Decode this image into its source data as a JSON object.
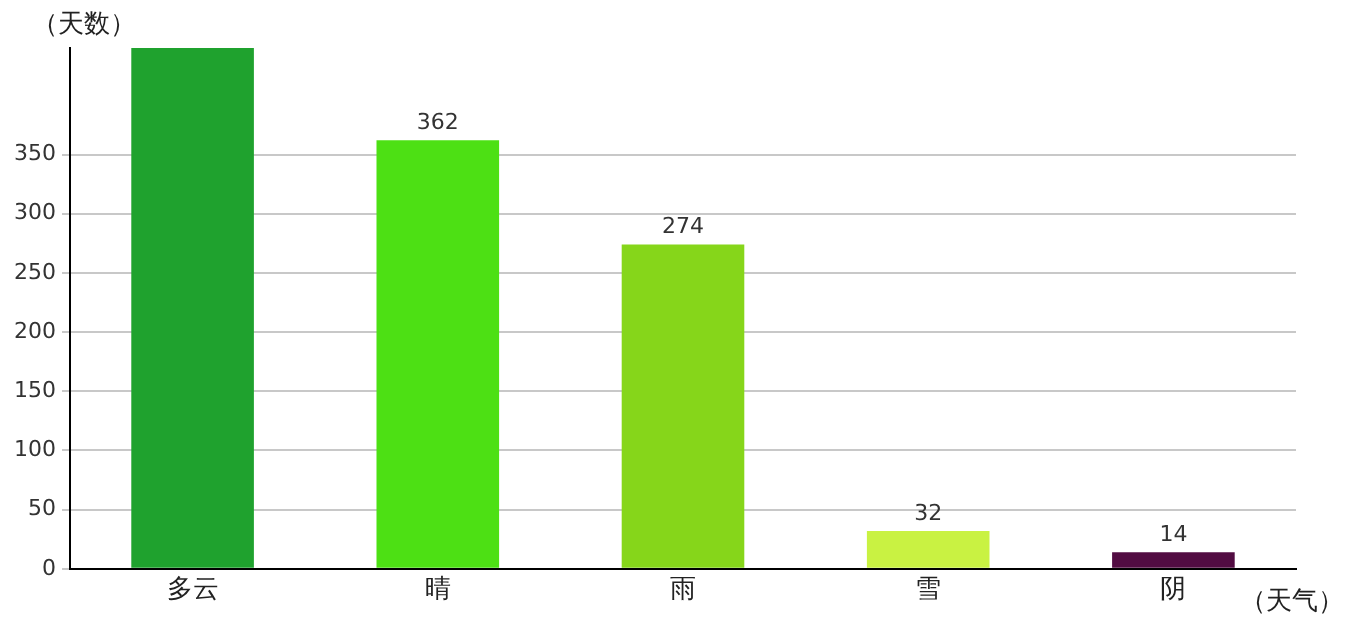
{
  "chart_data": {
    "type": "bar",
    "ylabel": "（天数）",
    "xlabel": "（天气）",
    "categories": [
      "多云",
      "晴",
      "雨",
      "雪",
      "阴"
    ],
    "values": [
      440,
      362,
      274,
      32,
      14
    ],
    "colors": [
      "#1fa22e",
      "#4de014",
      "#86d61a",
      "#c9f242",
      "#520c42"
    ],
    "value_labels": [
      null,
      "362",
      "274",
      "32",
      "14"
    ],
    "ylim": [
      0,
      440
    ],
    "yticks": [
      0,
      50,
      100,
      150,
      200,
      250,
      300,
      350
    ],
    "grid": "y",
    "legend": false
  }
}
